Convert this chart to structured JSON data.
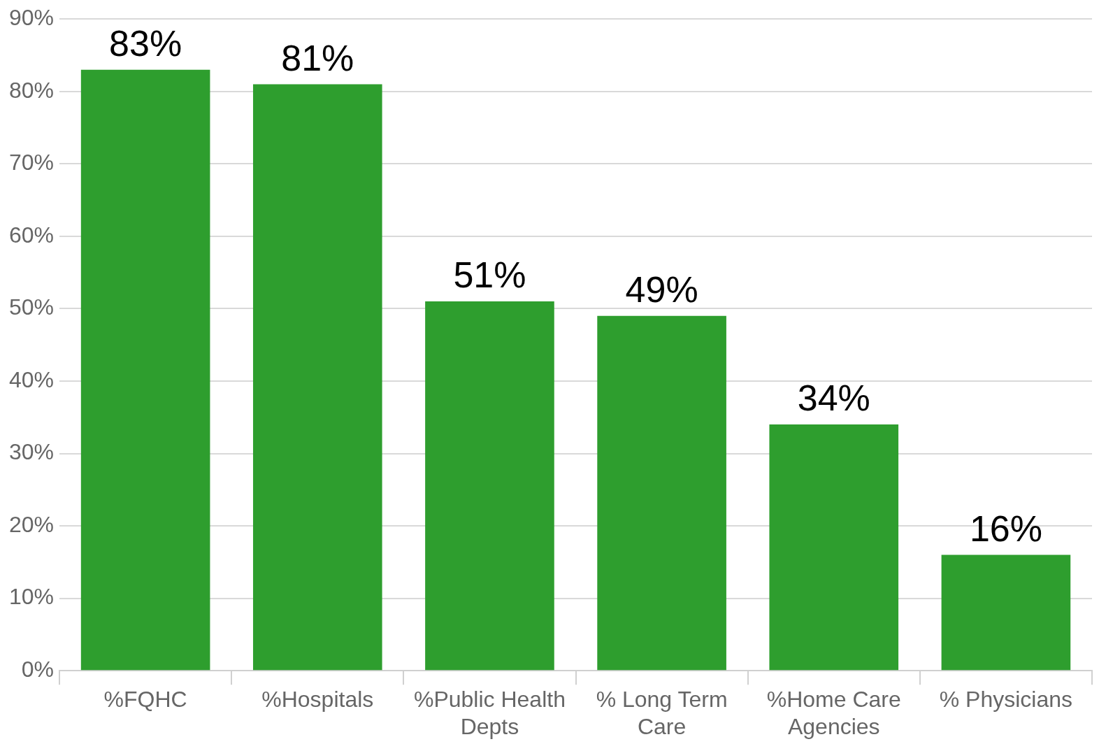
{
  "chart_data": {
    "type": "bar",
    "categories": [
      "%FQHC",
      "%Hospitals",
      "%Public Health Depts",
      "% Long Term Care",
      "%Home Care Agencies",
      "% Physicians"
    ],
    "values": [
      83,
      81,
      51,
      49,
      34,
      16
    ],
    "value_labels": [
      "83%",
      "81%",
      "51%",
      "49%",
      "34%",
      "16%"
    ],
    "color": "#2e9e2e",
    "ylim": [
      0,
      90
    ],
    "yticks": [
      {
        "value": 0,
        "label": "0%"
      },
      {
        "value": 10,
        "label": "10%"
      },
      {
        "value": 20,
        "label": "20%"
      },
      {
        "value": 30,
        "label": "30%"
      },
      {
        "value": 40,
        "label": "40%"
      },
      {
        "value": 50,
        "label": "50%"
      },
      {
        "value": 60,
        "label": "60%"
      },
      {
        "value": 70,
        "label": "70%"
      },
      {
        "value": 80,
        "label": "80%"
      },
      {
        "value": 90,
        "label": "90%"
      }
    ],
    "grid": "y",
    "legend": false
  }
}
